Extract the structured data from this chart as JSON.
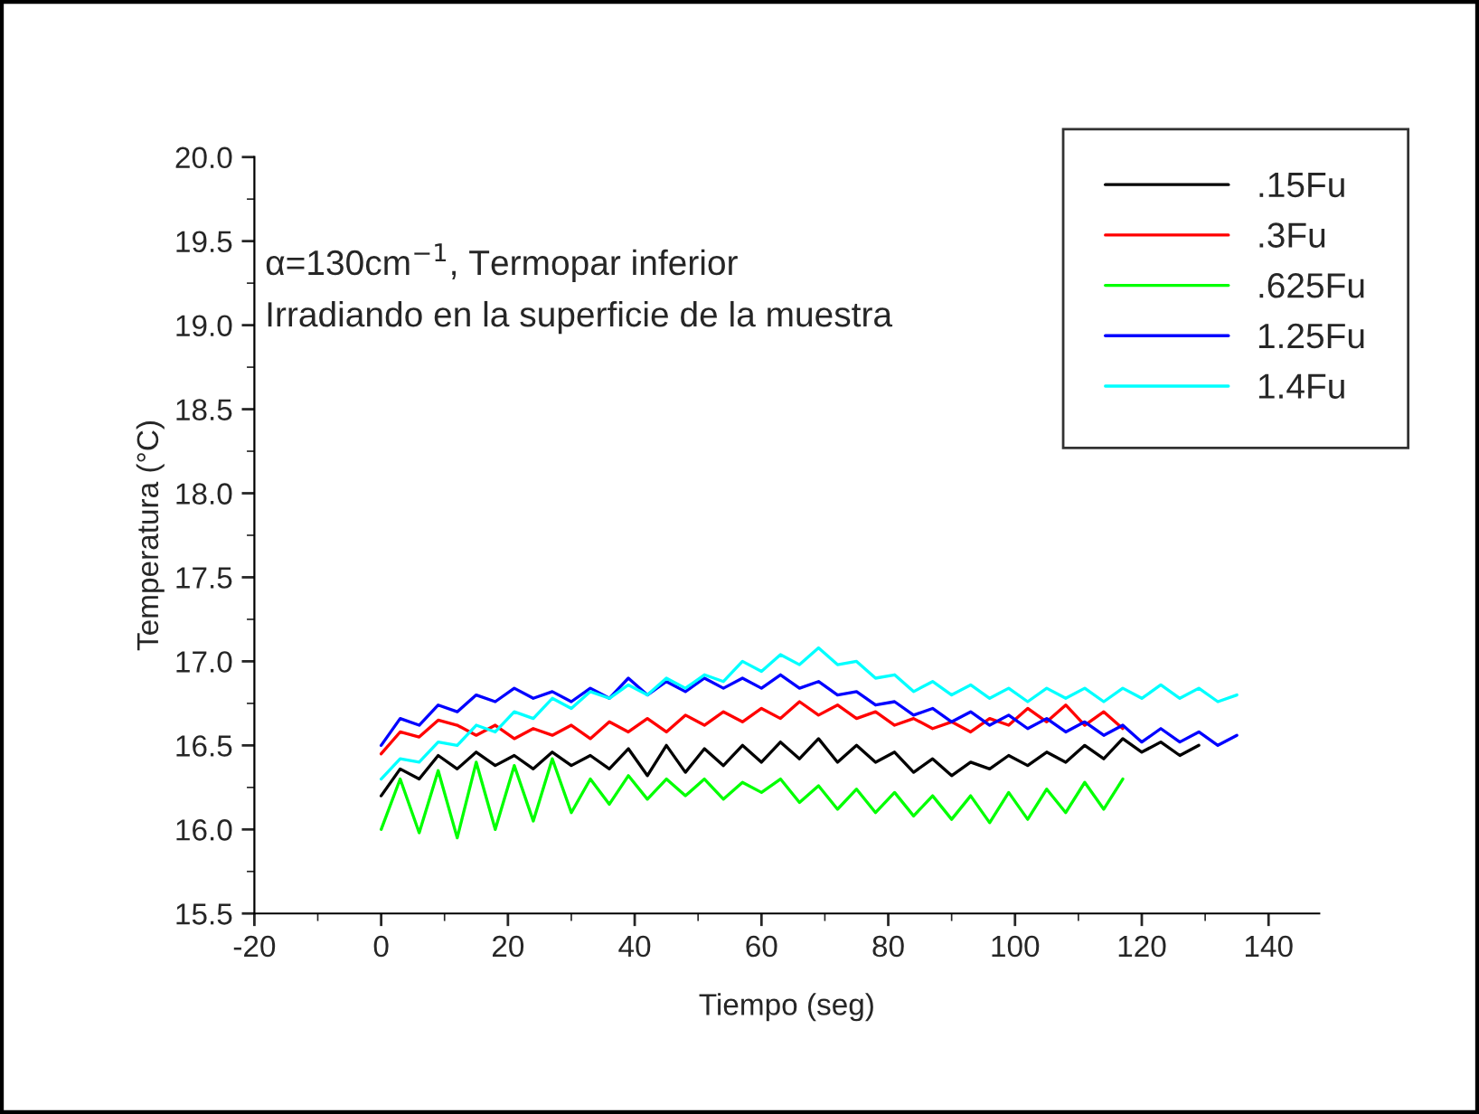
{
  "chart_data": {
    "type": "line",
    "xlabel": "Tiempo (seg)",
    "ylabel": "Temperatura (°C)",
    "annotations": [
      "α=130cm$^{−1}$, Termopar inferior",
      "Irradiando en la superficie de la muestra"
    ],
    "xlim": [
      -20,
      148
    ],
    "xticks": [
      -20,
      0,
      20,
      40,
      60,
      80,
      100,
      120,
      140
    ],
    "ylim": [
      15.5,
      20.0
    ],
    "yticks": [
      {
        "value": 15.5,
        "label": "15.5"
      },
      {
        "value": 16.0,
        "label": "16.0"
      },
      {
        "value": 16.5,
        "label": "16.5"
      },
      {
        "value": 17.0,
        "label": "17.0"
      },
      {
        "value": 17.5,
        "label": "17.5"
      },
      {
        "value": 18.0,
        "label": "18.0"
      },
      {
        "value": 18.5,
        "label": "18.5"
      },
      {
        "value": 19.0,
        "label": "19.0"
      },
      {
        "value": 19.5,
        "label": "19.5"
      },
      {
        "value": 20.0,
        "label": "20.0"
      }
    ],
    "grid": false,
    "legend": "top right",
    "marker": "none",
    "line_style": "solid",
    "series": [
      {
        "name": ".15Fu",
        "color": "#000000",
        "x": [
          0,
          3,
          6,
          9,
          12,
          15,
          18,
          21,
          24,
          27,
          30,
          33,
          36,
          39,
          42,
          45,
          48,
          51,
          54,
          57,
          60,
          63,
          66,
          69,
          72,
          75,
          78,
          81,
          84,
          87,
          90,
          93,
          96,
          99,
          102,
          105,
          108,
          111,
          114,
          117,
          120,
          123,
          126,
          129
        ],
        "values": [
          16.2,
          16.36,
          16.3,
          16.44,
          16.36,
          16.46,
          16.38,
          16.44,
          16.36,
          16.46,
          16.38,
          16.44,
          16.36,
          16.48,
          16.32,
          16.5,
          16.34,
          16.48,
          16.38,
          16.5,
          16.4,
          16.52,
          16.42,
          16.54,
          16.4,
          16.5,
          16.4,
          16.46,
          16.34,
          16.42,
          16.32,
          16.4,
          16.36,
          16.44,
          16.38,
          16.46,
          16.4,
          16.5,
          16.42,
          16.54,
          16.46,
          16.52,
          16.44,
          16.5
        ]
      },
      {
        "name": ".3Fu",
        "color": "#ff0000",
        "x": [
          0,
          3,
          6,
          9,
          12,
          15,
          18,
          21,
          24,
          27,
          30,
          33,
          36,
          39,
          42,
          45,
          48,
          51,
          54,
          57,
          60,
          63,
          66,
          69,
          72,
          75,
          78,
          81,
          84,
          87,
          90,
          93,
          96,
          99,
          102,
          105,
          108,
          111,
          114,
          117
        ],
        "values": [
          16.45,
          16.58,
          16.55,
          16.65,
          16.62,
          16.56,
          16.62,
          16.54,
          16.6,
          16.56,
          16.62,
          16.54,
          16.64,
          16.58,
          16.66,
          16.58,
          16.68,
          16.62,
          16.7,
          16.64,
          16.72,
          16.66,
          16.76,
          16.68,
          16.74,
          16.66,
          16.7,
          16.62,
          16.66,
          16.6,
          16.64,
          16.58,
          16.66,
          16.62,
          16.72,
          16.64,
          16.74,
          16.62,
          16.7,
          16.6
        ]
      },
      {
        "name": ".625Fu",
        "color": "#00ff00",
        "x": [
          0,
          3,
          6,
          9,
          12,
          15,
          18,
          21,
          24,
          27,
          30,
          33,
          36,
          39,
          42,
          45,
          48,
          51,
          54,
          57,
          60,
          63,
          66,
          69,
          72,
          75,
          78,
          81,
          84,
          87,
          90,
          93,
          96,
          99,
          102,
          105,
          108,
          111,
          114,
          117
        ],
        "values": [
          16.0,
          16.3,
          15.98,
          16.35,
          15.95,
          16.4,
          16.0,
          16.38,
          16.05,
          16.42,
          16.1,
          16.3,
          16.15,
          16.32,
          16.18,
          16.3,
          16.2,
          16.3,
          16.18,
          16.28,
          16.22,
          16.3,
          16.16,
          16.26,
          16.12,
          16.24,
          16.1,
          16.22,
          16.08,
          16.2,
          16.06,
          16.2,
          16.04,
          16.22,
          16.06,
          16.24,
          16.1,
          16.28,
          16.12,
          16.3
        ]
      },
      {
        "name": "1.25Fu",
        "color": "#0000ff",
        "x": [
          0,
          3,
          6,
          9,
          12,
          15,
          18,
          21,
          24,
          27,
          30,
          33,
          36,
          39,
          42,
          45,
          48,
          51,
          54,
          57,
          60,
          63,
          66,
          69,
          72,
          75,
          78,
          81,
          84,
          87,
          90,
          93,
          96,
          99,
          102,
          105,
          108,
          111,
          114,
          117,
          120,
          123,
          126,
          129,
          132,
          135
        ],
        "values": [
          16.5,
          16.66,
          16.62,
          16.74,
          16.7,
          16.8,
          16.76,
          16.84,
          16.78,
          16.82,
          16.76,
          16.84,
          16.78,
          16.9,
          16.8,
          16.88,
          16.82,
          16.9,
          16.84,
          16.9,
          16.84,
          16.92,
          16.84,
          16.88,
          16.8,
          16.82,
          16.74,
          16.76,
          16.68,
          16.72,
          16.64,
          16.7,
          16.62,
          16.68,
          16.6,
          16.66,
          16.58,
          16.64,
          16.56,
          16.62,
          16.52,
          16.6,
          16.52,
          16.58,
          16.5,
          16.56
        ]
      },
      {
        "name": "1.4Fu",
        "color": "#00ffff",
        "x": [
          0,
          3,
          6,
          9,
          12,
          15,
          18,
          21,
          24,
          27,
          30,
          33,
          36,
          39,
          42,
          45,
          48,
          51,
          54,
          57,
          60,
          63,
          66,
          69,
          72,
          75,
          78,
          81,
          84,
          87,
          90,
          93,
          96,
          99,
          102,
          105,
          108,
          111,
          114,
          117,
          120,
          123,
          126,
          129,
          132,
          135
        ],
        "values": [
          16.3,
          16.42,
          16.4,
          16.52,
          16.5,
          16.62,
          16.58,
          16.7,
          16.66,
          16.78,
          16.72,
          16.82,
          16.78,
          16.86,
          16.8,
          16.9,
          16.84,
          16.92,
          16.88,
          17.0,
          16.94,
          17.04,
          16.98,
          17.08,
          16.98,
          17.0,
          16.9,
          16.92,
          16.82,
          16.88,
          16.8,
          16.86,
          16.78,
          16.84,
          16.76,
          16.84,
          16.78,
          16.84,
          16.76,
          16.84,
          16.78,
          16.86,
          16.78,
          16.84,
          16.76,
          16.8
        ]
      }
    ]
  }
}
